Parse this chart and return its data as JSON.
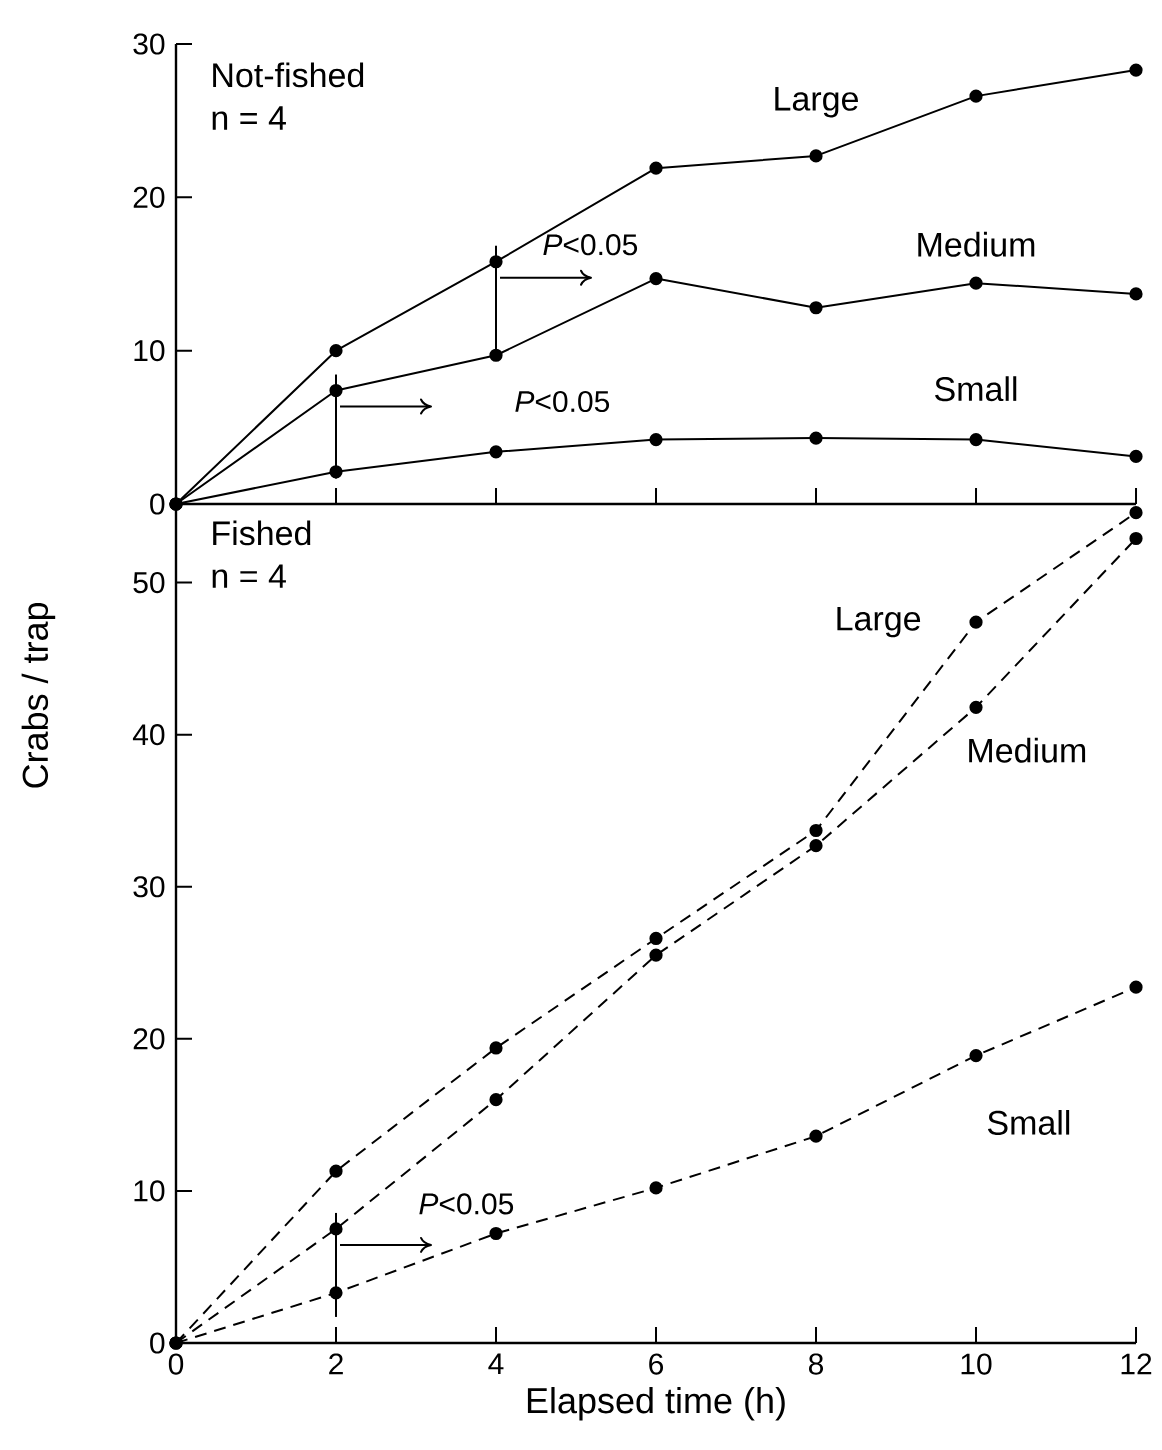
{
  "chart_data": [
    {
      "type": "line",
      "x": [
        0,
        2,
        4,
        6,
        8,
        10,
        12
      ],
      "xlim": [
        0,
        12
      ],
      "xticks": [
        0,
        2,
        4,
        6,
        8,
        10,
        12
      ],
      "ylim": [
        0,
        30
      ],
      "yticks": [
        0,
        10,
        20,
        30
      ],
      "tick_labels": "y",
      "marker": "circle",
      "line_style": "solid",
      "series": [
        {
          "name": "Large",
          "color": "#000000",
          "values": [
            0,
            10,
            15.8,
            21.9,
            22.7,
            26.6,
            28.3
          ]
        },
        {
          "name": "Medium",
          "color": "#000000",
          "values": [
            0,
            7.4,
            9.7,
            14.7,
            12.8,
            14.4,
            13.7
          ]
        },
        {
          "name": "Small",
          "color": "#000000",
          "values": [
            0,
            2.1,
            3.4,
            4.2,
            4.3,
            4.2,
            3.1
          ]
        }
      ],
      "annotations": [
        "Not-fished",
        "n = 4",
        "*P*<0.05",
        "*P*<0.05"
      ]
    },
    {
      "type": "line",
      "x": [
        0,
        2,
        4,
        6,
        8,
        10,
        12
      ],
      "xlim": [
        0,
        12
      ],
      "xticks": [
        0,
        2,
        4,
        6,
        8,
        10,
        12
      ],
      "ylim": [
        0,
        55.3
      ],
      "yticks": [
        0,
        10,
        20,
        30,
        40,
        50
      ],
      "marker": "circle",
      "line_style": "dashed",
      "xlabel": "Elapsed time (h)",
      "ylabel": "Crabs / trap",
      "series": [
        {
          "name": "Large",
          "color": "#000000",
          "values": [
            0,
            11.3,
            19.4,
            26.6,
            33.7,
            47.4,
            54.6
          ]
        },
        {
          "name": "Medium",
          "color": "#000000",
          "values": [
            0,
            7.5,
            16.0,
            25.5,
            32.7,
            41.8,
            52.9
          ]
        },
        {
          "name": "Small",
          "color": "#000000",
          "values": [
            0,
            3.3,
            7.2,
            10.2,
            13.6,
            18.9,
            23.4
          ]
        }
      ],
      "annotations": [
        "Fished",
        "n = 4",
        "*P*<0.05"
      ]
    }
  ]
}
